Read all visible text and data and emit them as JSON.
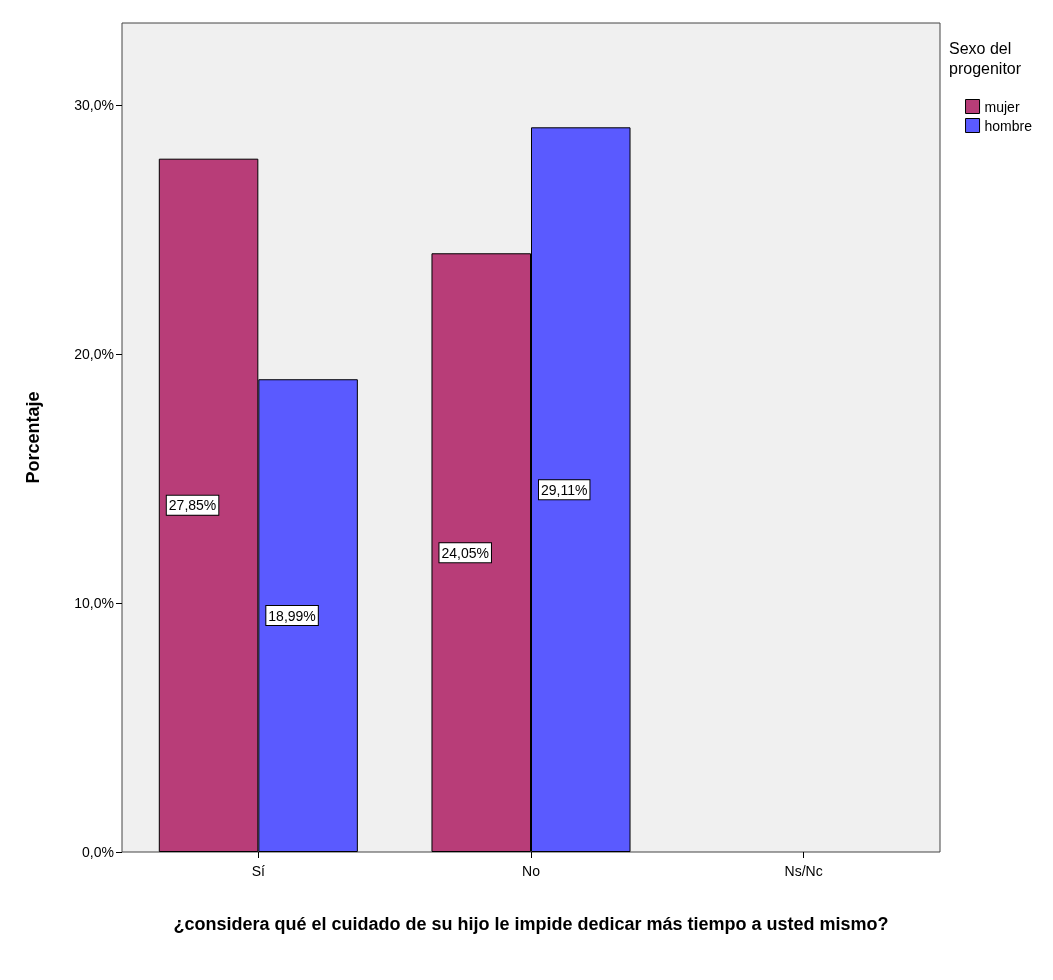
{
  "chart_data": {
    "type": "bar",
    "xlabel": "¿considera qué el cuidado de su hijo le impide dedicar más tiempo a usted mismo?",
    "ylabel": "Porcentaje",
    "legend_title": "Sexo del progenitor",
    "categories": [
      "Sí",
      "No",
      "Ns/Nc"
    ],
    "series": [
      {
        "name": "mujer",
        "color": "#b83d78",
        "values": [
          27.85,
          24.05,
          null
        ],
        "value_labels": [
          "27,85%",
          "24,05%",
          null
        ]
      },
      {
        "name": "hombre",
        "color": "#5a5aff",
        "values": [
          18.99,
          29.11,
          null
        ],
        "value_labels": [
          "18,99%",
          "29,11%",
          null
        ]
      }
    ],
    "ylim": [
      0,
      33.3
    ],
    "yticks": [
      {
        "value": 0,
        "label": "0,0%"
      },
      {
        "value": 10,
        "label": "10,0%"
      },
      {
        "value": 20,
        "label": "20,0%"
      },
      {
        "value": 30,
        "label": "30,0%"
      }
    ],
    "grid": false,
    "legend": "top right"
  }
}
